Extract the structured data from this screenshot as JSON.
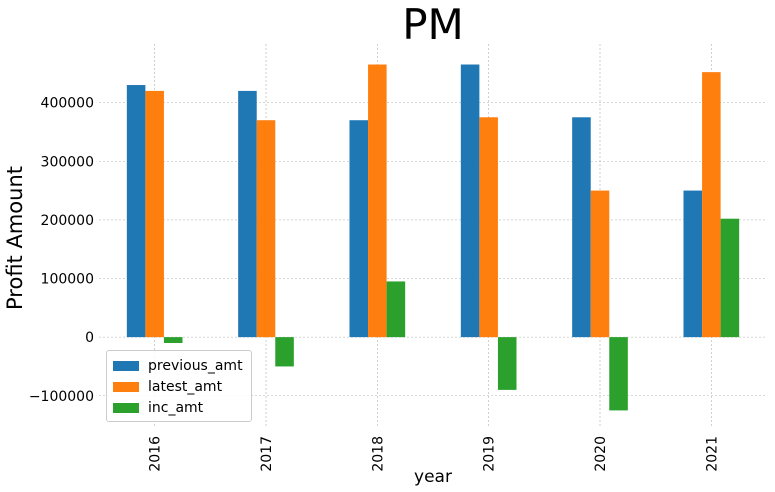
{
  "chart_data": {
    "type": "bar",
    "title": "PM",
    "xlabel": "year",
    "ylabel": "Profit Amount",
    "categories": [
      "2016",
      "2017",
      "2018",
      "2019",
      "2020",
      "2021"
    ],
    "series": [
      {
        "name": "previous_amt",
        "color": "#1f77b4",
        "values": [
          430000,
          420000,
          370000,
          465000,
          375000,
          250000
        ]
      },
      {
        "name": "latest_amt",
        "color": "#ff7f0e",
        "values": [
          420000,
          370000,
          465000,
          375000,
          250000,
          452000
        ]
      },
      {
        "name": "inc_amt",
        "color": "#2ca02c",
        "values": [
          -10000,
          -50000,
          95000,
          -90000,
          -125000,
          202000
        ]
      }
    ],
    "ylim": [
      -155000,
      500000
    ],
    "yticks": [
      -100000,
      0,
      100000,
      200000,
      300000,
      400000
    ],
    "ytick_labels": [
      "−100000",
      "0",
      "100000",
      "200000",
      "300000",
      "400000"
    ],
    "grid": true,
    "legend_position": "lower-left",
    "xtick_rotation": "vertical"
  }
}
